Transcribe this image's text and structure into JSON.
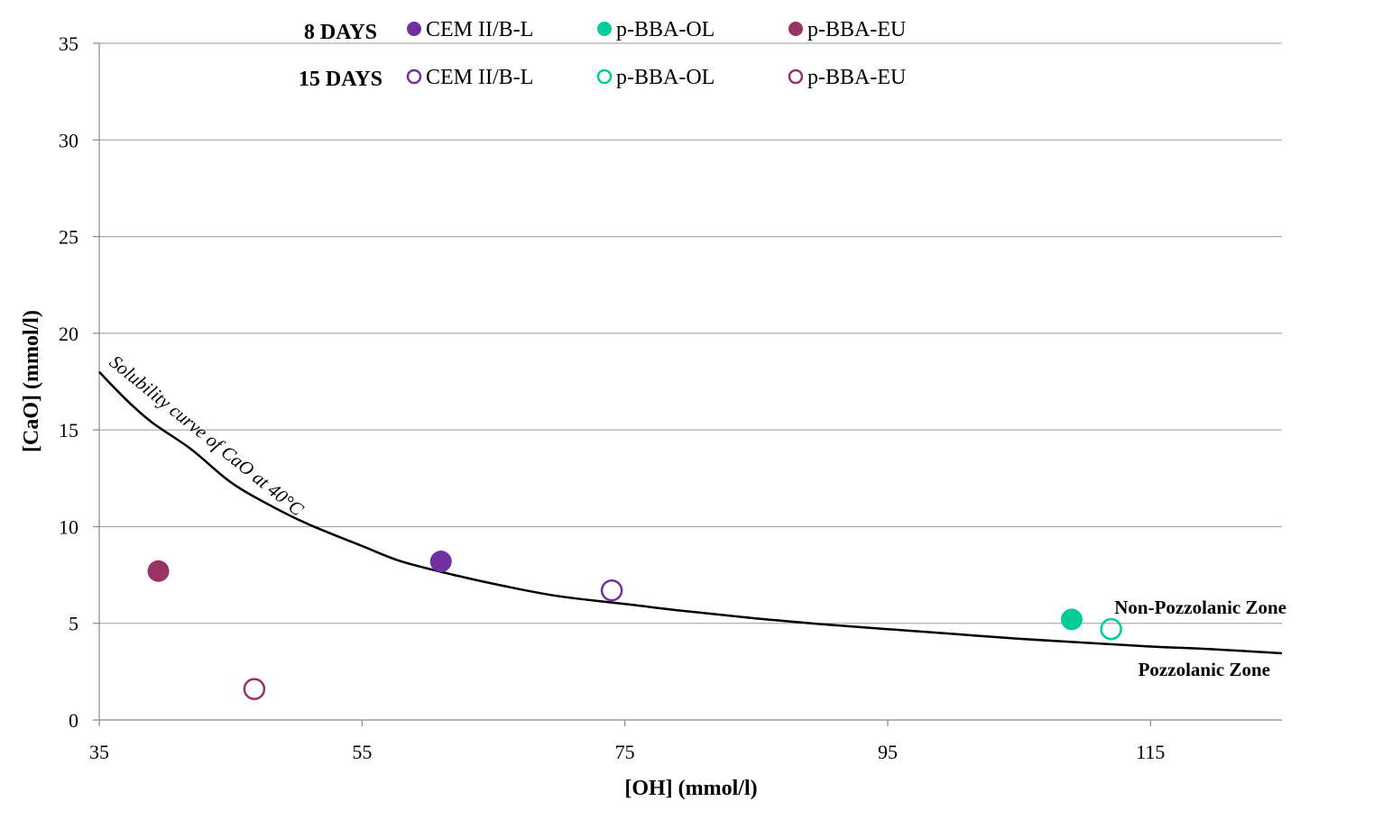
{
  "chart_data": {
    "type": "scatter",
    "xlabel": "[OH] (mmol/l)",
    "ylabel": "[CaO] (mmol/l)",
    "xlim": [
      35,
      125
    ],
    "ylim": [
      0,
      35
    ],
    "x_ticks": [
      35,
      55,
      75,
      95,
      115
    ],
    "y_ticks": [
      0,
      5,
      10,
      15,
      20,
      25,
      30,
      35
    ],
    "grid": "horizontal",
    "legend_placement": "top",
    "legend_groups": [
      {
        "label": "8 DAYS",
        "marker": "filled"
      },
      {
        "label": "15 DAYS",
        "marker": "open"
      }
    ],
    "series": [
      {
        "name": "CEM II/B-L",
        "color": "#7030a0",
        "group": "8 DAYS",
        "filled": true,
        "points": [
          {
            "x": 61,
            "y": 8.2
          }
        ]
      },
      {
        "name": "p-BBA-OL",
        "color": "#00cc99",
        "group": "8 DAYS",
        "filled": true,
        "points": [
          {
            "x": 109,
            "y": 5.2
          }
        ]
      },
      {
        "name": "p-BBA-EU",
        "color": "#993366",
        "group": "8 DAYS",
        "filled": true,
        "points": [
          {
            "x": 39.5,
            "y": 7.7
          }
        ]
      },
      {
        "name": "CEM II/B-L",
        "color": "#7030a0",
        "group": "15 DAYS",
        "filled": false,
        "points": [
          {
            "x": 74,
            "y": 6.7
          }
        ]
      },
      {
        "name": "p-BBA-OL",
        "color": "#00cc99",
        "group": "15 DAYS",
        "filled": false,
        "points": [
          {
            "x": 112,
            "y": 4.7
          }
        ]
      },
      {
        "name": "p-BBA-EU",
        "color": "#993366",
        "group": "15 DAYS",
        "filled": false,
        "points": [
          {
            "x": 46.8,
            "y": 1.6
          }
        ]
      }
    ],
    "solubility_curve": {
      "label": "Solubility curve of CaO at 40°C",
      "color": "#000000",
      "points": [
        [
          35,
          18
        ],
        [
          37,
          16.6
        ],
        [
          39,
          15.4
        ],
        [
          42,
          14
        ],
        [
          45,
          12.3
        ],
        [
          48,
          11.1
        ],
        [
          51,
          10.1
        ],
        [
          55,
          9.0
        ],
        [
          58,
          8.2
        ],
        [
          62,
          7.5
        ],
        [
          66,
          6.9
        ],
        [
          70,
          6.4
        ],
        [
          75,
          6.0
        ],
        [
          80,
          5.6
        ],
        [
          85,
          5.25
        ],
        [
          90,
          4.95
        ],
        [
          95,
          4.7
        ],
        [
          100,
          4.45
        ],
        [
          105,
          4.2
        ],
        [
          110,
          4.0
        ],
        [
          115,
          3.8
        ],
        [
          120,
          3.65
        ],
        [
          125,
          3.45
        ]
      ]
    },
    "annotations": {
      "upper_zone": "Non-Pozzolanic Zone",
      "lower_zone": "Pozzolanic Zone"
    }
  }
}
